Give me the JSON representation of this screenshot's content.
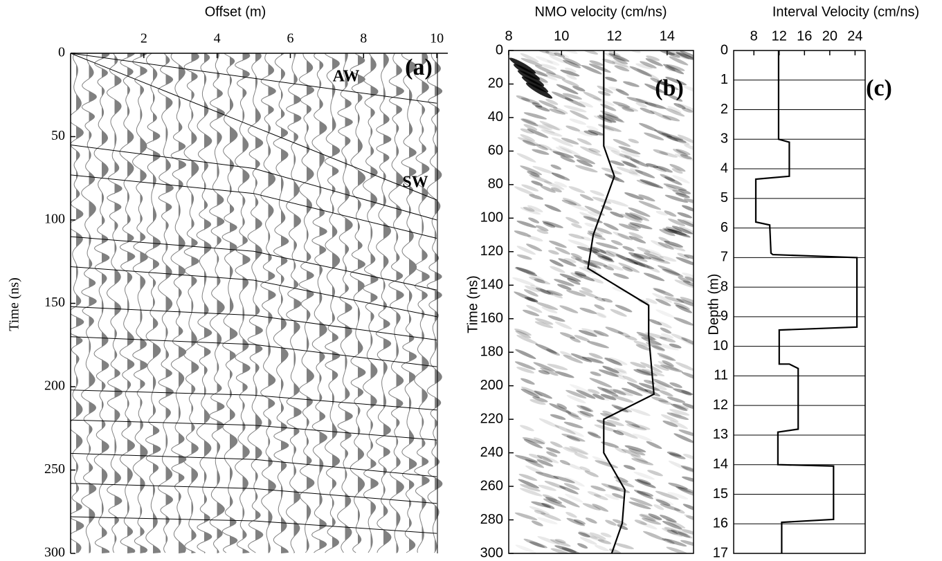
{
  "chart_data": [
    {
      "type": "line",
      "x_label": "Offset (m)",
      "y_label": "Time (ns)",
      "xlim": [
        0,
        10.3
      ],
      "ylim": [
        0,
        300
      ],
      "y_inverted": true,
      "xticks": [
        2,
        4,
        6,
        8,
        10
      ],
      "yticks": [
        0,
        50,
        100,
        150,
        200,
        250,
        300
      ],
      "annotations": [
        "AW",
        "SW",
        "(a)"
      ],
      "series": [
        {
          "color": "#000000",
          "x": [
            0,
            10
          ],
          "values": [
            0,
            30
          ]
        },
        {
          "color": "#000000",
          "x": [
            0,
            10
          ],
          "values": [
            0,
            88
          ]
        },
        {
          "color": "#000000",
          "x": [
            0,
            5,
            10
          ],
          "values": [
            55,
            69.1,
            100
          ]
        },
        {
          "color": "#000000",
          "x": [
            0,
            5,
            10
          ],
          "values": [
            73,
            84.1,
            111
          ]
        },
        {
          "color": "#000000",
          "x": [
            0,
            5,
            10
          ],
          "values": [
            110,
            118.8,
            142
          ]
        },
        {
          "color": "#000000",
          "x": [
            0,
            5,
            10
          ],
          "values": [
            128,
            136.1,
            158
          ]
        },
        {
          "color": "#000000",
          "x": [
            0,
            5,
            10
          ],
          "values": [
            152,
            157.2,
            172
          ]
        },
        {
          "color": "#000000",
          "x": [
            0,
            5,
            10
          ],
          "values": [
            170,
            174.7,
            188
          ]
        },
        {
          "color": "#000000",
          "x": [
            0,
            5,
            10
          ],
          "values": [
            202,
            205.1,
            214
          ]
        },
        {
          "color": "#000000",
          "x": [
            0,
            5,
            10
          ],
          "values": [
            220,
            223.1,
            232
          ]
        },
        {
          "color": "#000000",
          "x": [
            0,
            5,
            10
          ],
          "values": [
            240,
            243.6,
            254
          ]
        },
        {
          "color": "#000000",
          "x": [
            0,
            5,
            10
          ],
          "values": [
            258,
            261.1,
            270
          ]
        },
        {
          "color": "#000000",
          "x": [
            0,
            5,
            10
          ],
          "values": [
            278,
            280.5,
            288
          ]
        }
      ]
    },
    {
      "type": "line",
      "x_label": "NMO velocity (cm/ns)",
      "y_label": "Time (ns)",
      "xlim": [
        8,
        15
      ],
      "ylim": [
        0,
        300
      ],
      "y_inverted": true,
      "xticks": [
        8,
        10,
        12,
        14
      ],
      "yticks": [
        0,
        20,
        40,
        60,
        80,
        100,
        120,
        140,
        160,
        180,
        200,
        220,
        240,
        260,
        280,
        300
      ],
      "annotations": [
        "(b)"
      ],
      "series": [
        {
          "color": "#000000",
          "x": [
            11.6,
            11.6,
            12.0,
            11.2,
            11.0,
            13.3,
            13.3,
            13.5,
            11.6,
            11.6,
            12.4,
            12.3,
            11.9
          ],
          "values": [
            0,
            57,
            75,
            110,
            130,
            152,
            170,
            205,
            220,
            240,
            262,
            282,
            300
          ]
        }
      ]
    },
    {
      "type": "line",
      "x_label": "Interval Velocity (cm/ns)",
      "y_label": "Depth (m)",
      "xlim": [
        4.8,
        25.6
      ],
      "ylim": [
        0,
        17
      ],
      "y_inverted": true,
      "grid": true,
      "xticks": [
        8,
        12,
        16,
        20,
        24
      ],
      "yticks": [
        0,
        1,
        2,
        3,
        4,
        5,
        6,
        7,
        8,
        9,
        10,
        11,
        12,
        13,
        14,
        15,
        16,
        17
      ],
      "annotations": [
        "(c)"
      ],
      "series": [
        {
          "color": "#000000",
          "x": [
            11.9,
            11.9,
            13.6,
            13.6,
            8.3,
            8.3,
            10.5,
            10.7,
            11.0,
            24.3,
            24.3,
            12.0,
            12.0,
            13.6,
            15,
            15,
            11.8,
            11.8,
            20.6,
            20.6,
            12.4,
            12.4
          ],
          "values": [
            0,
            3,
            3.1,
            4.25,
            4.35,
            5.8,
            5.9,
            6.85,
            6.9,
            7.0,
            9.35,
            9.45,
            10.6,
            10.6,
            10.75,
            12.8,
            12.9,
            14,
            14.05,
            15.85,
            15.95,
            17
          ]
        }
      ]
    }
  ]
}
